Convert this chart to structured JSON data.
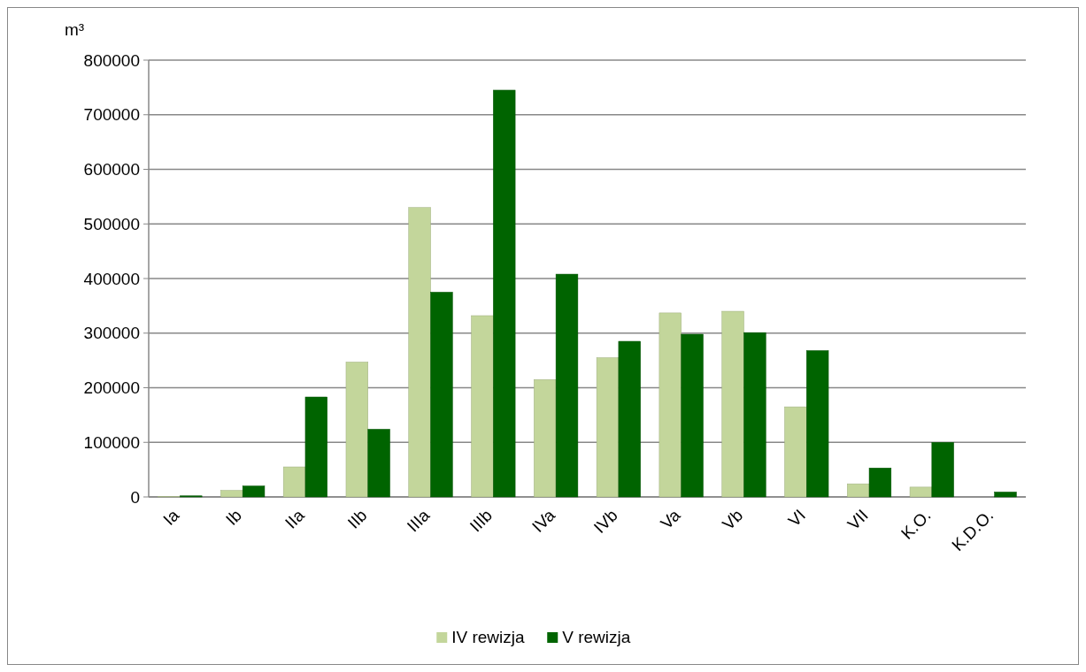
{
  "chart_data": {
    "type": "bar",
    "ylabel": "m³",
    "categories": [
      "Ia",
      "Ib",
      "IIa",
      "IIb",
      "IIIa",
      "IIIb",
      "IVa",
      "IVb",
      "Va",
      "Vb",
      "VI",
      "VII",
      "K.O.",
      "K.D.O."
    ],
    "series": [
      {
        "name": "IV rewizja",
        "color": "#c3d69b",
        "values": [
          1000,
          12000,
          55000,
          247000,
          530000,
          332000,
          215000,
          255000,
          337000,
          340000,
          165000,
          24000,
          18000,
          0
        ]
      },
      {
        "name": "V rewizja",
        "color": "#006400",
        "values": [
          2000,
          20000,
          183000,
          124000,
          375000,
          745000,
          408000,
          285000,
          298000,
          301000,
          268000,
          53000,
          100000,
          9000
        ]
      }
    ],
    "ylim": [
      0,
      800000
    ],
    "yticks": [
      0,
      100000,
      200000,
      300000,
      400000,
      500000,
      600000,
      700000,
      800000
    ],
    "grid": "y",
    "legend": "bottom"
  }
}
